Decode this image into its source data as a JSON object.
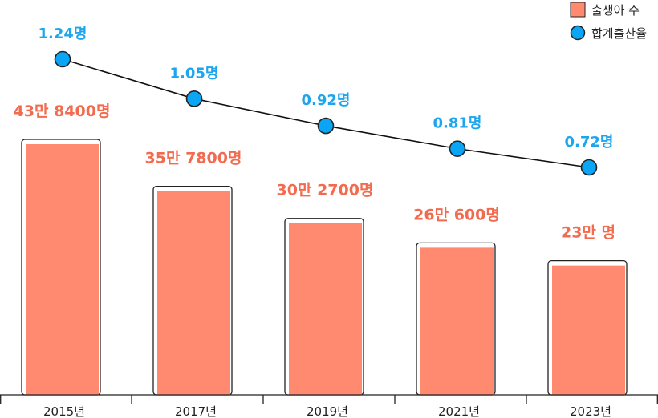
{
  "chart_data": {
    "type": "bar",
    "categories": [
      "2015년",
      "2017년",
      "2019년",
      "2021년",
      "2023년"
    ],
    "series": [
      {
        "name": "출생아 수",
        "type": "bar",
        "values": [
          438400,
          357800,
          302700,
          260600,
          230000
        ],
        "labels": [
          "43만 8400명",
          "35만 7800명",
          "30만 2700명",
          "26만 600명",
          "23만 명"
        ],
        "color": "#ff8a70"
      },
      {
        "name": "합계출산율",
        "type": "line",
        "values": [
          1.24,
          1.05,
          0.92,
          0.81,
          0.72
        ],
        "labels": [
          "1.24명",
          "1.05명",
          "0.92명",
          "0.81명",
          "0.72명"
        ],
        "color": "#0aa5f5"
      }
    ],
    "legend": {
      "position": "top-right"
    },
    "grid": false
  }
}
